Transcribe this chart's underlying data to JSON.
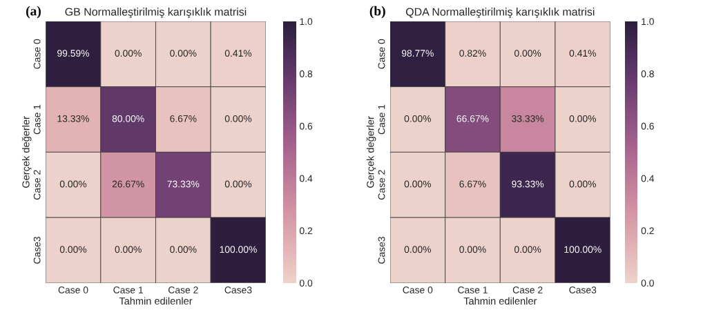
{
  "chart_data": [
    {
      "type": "heatmap",
      "title": "GB Normalleştirilmiş karışıklık matrisi",
      "annotations": [
        "(a)"
      ],
      "xlabel": "Tahmin edilenler",
      "ylabel": "Gerçek değerler",
      "categories": [
        "Case 0",
        "Case 1",
        "Case 2",
        "Case3"
      ],
      "y_categories": [
        "Case 0",
        "Case 1",
        "Case 2",
        "Case3"
      ],
      "cells": [
        [
          0.9959,
          0.0,
          0.0,
          0.0041
        ],
        [
          0.1333,
          0.8,
          0.0667,
          0.0
        ],
        [
          0.0,
          0.2667,
          0.7333,
          0.0
        ],
        [
          0.0,
          0.0,
          0.0,
          1.0
        ]
      ],
      "cell_labels": [
        [
          "99.59%",
          "0.00%",
          "0.00%",
          "0.41%"
        ],
        [
          "13.33%",
          "80.00%",
          "6.67%",
          "0.00%"
        ],
        [
          "0.00%",
          "26.67%",
          "73.33%",
          "0.00%"
        ],
        [
          "0.00%",
          "0.00%",
          "0.00%",
          "100.00%"
        ]
      ],
      "clim": [
        0,
        1
      ],
      "cticks": [
        {
          "value": 0,
          "label": "0.0"
        },
        {
          "value": 0.2,
          "label": "0.2"
        },
        {
          "value": 0.4,
          "label": "0.4"
        },
        {
          "value": 0.6,
          "label": "0.6"
        },
        {
          "value": 0.8,
          "label": "0.8"
        },
        {
          "value": 1,
          "label": "1.0"
        }
      ]
    },
    {
      "type": "heatmap",
      "title": "QDA Normalleştirilmiş karışıklık matrisi",
      "annotations": [
        "(b)"
      ],
      "xlabel": "Tahmin edilenler",
      "ylabel": "Gerçek değerler",
      "categories": [
        "Case 0",
        "Case 1",
        "Case 2",
        "Case3"
      ],
      "y_categories": [
        "Case 0",
        "Case 1",
        "Case 2",
        "Case3"
      ],
      "cells": [
        [
          0.9877,
          0.0082,
          0.0,
          0.0041
        ],
        [
          0.0,
          0.6667,
          0.3333,
          0.0
        ],
        [
          0.0,
          0.0667,
          0.9333,
          0.0
        ],
        [
          0.0,
          0.0,
          0.0,
          1.0
        ]
      ],
      "cell_labels": [
        [
          "98.77%",
          "0.82%",
          "0.00%",
          "0.41%"
        ],
        [
          "0.00%",
          "66.67%",
          "33.33%",
          "0.00%"
        ],
        [
          "0.00%",
          "6.67%",
          "93.33%",
          "0.00%"
        ],
        [
          "0.00%",
          "0.00%",
          "0.00%",
          "100.00%"
        ]
      ],
      "clim": [
        0,
        1
      ],
      "cticks": [
        {
          "value": 0,
          "label": "0.0"
        },
        {
          "value": 0.2,
          "label": "0.2"
        },
        {
          "value": 0.4,
          "label": "0.4"
        },
        {
          "value": 0.6,
          "label": "0.6"
        },
        {
          "value": 0.8,
          "label": "0.8"
        },
        {
          "value": 1,
          "label": "1.0"
        }
      ]
    }
  ]
}
